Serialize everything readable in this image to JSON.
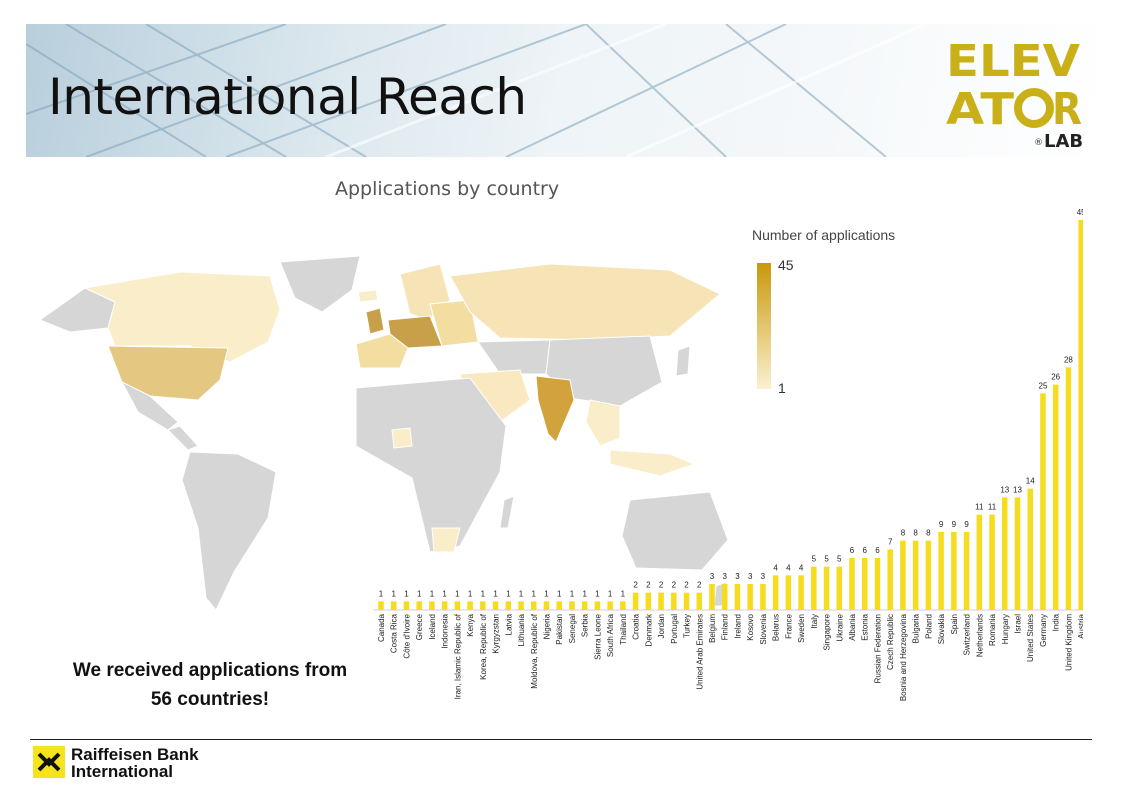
{
  "slide": {
    "title": "International Reach",
    "map_title": "Applications by country",
    "note": "We received applications from 56 countries!",
    "bank": [
      "Raiffeisen Bank",
      "International"
    ]
  },
  "logo": {
    "line1": "ELEV",
    "line2": "AT",
    "line3": "R",
    "lab": "LAB",
    "registered": "®"
  },
  "legend": {
    "title": "Number of applications",
    "max": "45",
    "min": "1"
  },
  "colors": {
    "bar": "#f5dc1e",
    "logo": "#c9b018",
    "legend_high": "#c9980a",
    "legend_low": "#fbf1d1",
    "map_nodata": "#d6d6d6",
    "rbi_yellow": "#f5e41c"
  },
  "chart_data": [
    {
      "type": "bar",
      "title": "",
      "xlabel": "",
      "ylabel": "",
      "ylim": [
        0,
        45
      ],
      "grid": false,
      "data_labels": true,
      "categories": [
        "Canada",
        "Costa Rica",
        "Côte d'Ivoire",
        "Greece",
        "Iceland",
        "Indonesia",
        "Iran, Islamic Republic of",
        "Kenya",
        "Korea, Republic of",
        "Kyrgyzstan",
        "Latvia",
        "Lithuania",
        "Moldova, Republic of",
        "Nigeria",
        "Pakistan",
        "Senegal",
        "Serbia",
        "Sierra Leone",
        "South Africa",
        "Thailand",
        "Croatia",
        "Denmark",
        "Jordan",
        "Portugal",
        "Turkey",
        "United Arab Emirates",
        "Belgium",
        "Finland",
        "Ireland",
        "Kosovo",
        "Slovenia",
        "Belarus",
        "France",
        "Sweden",
        "Italy",
        "Singapore",
        "Ukraine",
        "Albania",
        "Estonia",
        "Russian Federation",
        "Czech Republic",
        "Bosnia and Herzegovina",
        "Bulgaria",
        "Poland",
        "Slovakia",
        "Spain",
        "Switzerland",
        "Netherlands",
        "Romania",
        "Hungary",
        "Israel",
        "United States",
        "Germany",
        "India",
        "United Kingdom",
        "Austria"
      ],
      "values": [
        1,
        1,
        1,
        1,
        1,
        1,
        1,
        1,
        1,
        1,
        1,
        1,
        1,
        1,
        1,
        1,
        1,
        1,
        1,
        1,
        2,
        2,
        2,
        2,
        2,
        2,
        3,
        3,
        3,
        3,
        3,
        4,
        4,
        4,
        5,
        5,
        5,
        6,
        6,
        6,
        7,
        8,
        8,
        8,
        9,
        9,
        9,
        11,
        11,
        13,
        13,
        14,
        25,
        26,
        28,
        45
      ]
    },
    {
      "type": "heatmap",
      "title": "Applications by country",
      "legend": "Number of applications",
      "scale": [
        1,
        45
      ],
      "legend_placement": "right",
      "countries": {
        "Austria": 45,
        "United Kingdom": 28,
        "India": 26,
        "Germany": 25,
        "United States": 14,
        "Israel": 13,
        "Hungary": 13,
        "Romania": 11,
        "Netherlands": 11,
        "Switzerland": 9,
        "Spain": 9,
        "Slovakia": 9,
        "Poland": 8,
        "Bulgaria": 8,
        "Bosnia and Herzegovina": 8,
        "Czech Republic": 7,
        "Russian Federation": 6,
        "Estonia": 6,
        "Albania": 6,
        "Ukraine": 5,
        "Singapore": 5,
        "Italy": 5,
        "Sweden": 4,
        "France": 4,
        "Belarus": 4,
        "Slovenia": 3,
        "Kosovo": 3,
        "Ireland": 3,
        "Finland": 3,
        "Belgium": 3,
        "United Arab Emirates": 2,
        "Turkey": 2,
        "Portugal": 2,
        "Jordan": 2,
        "Denmark": 2,
        "Croatia": 2,
        "Canada": 1,
        "South Africa": 1,
        "Indonesia": 1,
        "Iran, Islamic Republic of": 1,
        "Kenya": 1,
        "Nigeria": 1,
        "Pakistan": 1,
        "Thailand": 1
      }
    }
  ]
}
